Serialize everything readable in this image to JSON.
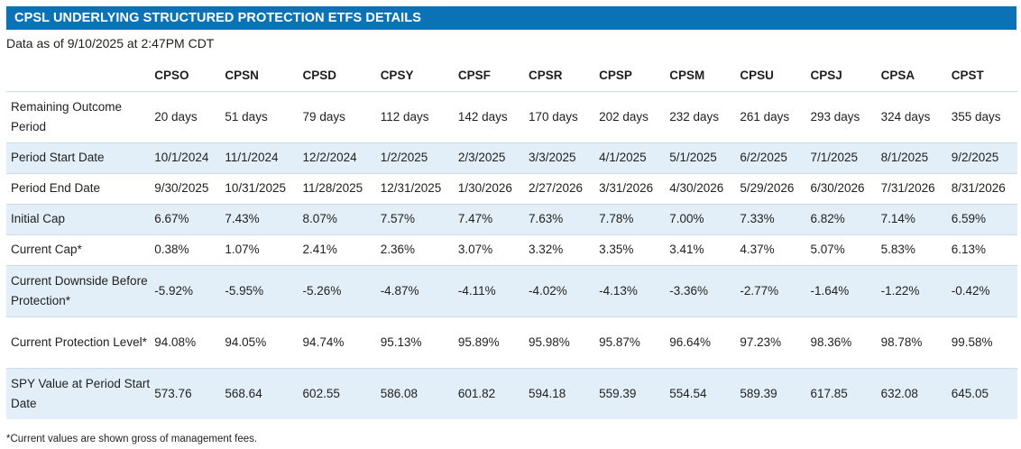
{
  "header": {
    "title": "CPSL UNDERLYING STRUCTURED PROTECTION ETFS DETAILS"
  },
  "as_of": "Data as of 9/10/2025 at 2:47PM CDT",
  "table": {
    "columns": [
      "CPSO",
      "CPSN",
      "CPSD",
      "CPSY",
      "CPSF",
      "CPSR",
      "CPSP",
      "CPSM",
      "CPSU",
      "CPSJ",
      "CPSA",
      "CPST"
    ],
    "rows": [
      {
        "label": "Remaining Outcome Period",
        "shaded": false,
        "tall": true,
        "values": [
          "20 days",
          "51 days",
          "79 days",
          "112 days",
          "142 days",
          "170 days",
          "202 days",
          "232 days",
          "261 days",
          "293 days",
          "324 days",
          "355 days"
        ]
      },
      {
        "label": "Period Start Date",
        "shaded": true,
        "tall": false,
        "values": [
          "10/1/2024",
          "11/1/2024",
          "12/2/2024",
          "1/2/2025",
          "2/3/2025",
          "3/3/2025",
          "4/1/2025",
          "5/1/2025",
          "6/2/2025",
          "7/1/2025",
          "8/1/2025",
          "9/2/2025"
        ]
      },
      {
        "label": "Period End Date",
        "shaded": false,
        "tall": false,
        "values": [
          "9/30/2025",
          "10/31/2025",
          "11/28/2025",
          "12/31/2025",
          "1/30/2026",
          "2/27/2026",
          "3/31/2026",
          "4/30/2026",
          "5/29/2026",
          "6/30/2026",
          "7/31/2026",
          "8/31/2026"
        ]
      },
      {
        "label": "Initial Cap",
        "shaded": true,
        "tall": false,
        "values": [
          "6.67%",
          "7.43%",
          "8.07%",
          "7.57%",
          "7.47%",
          "7.63%",
          "7.78%",
          "7.00%",
          "7.33%",
          "6.82%",
          "7.14%",
          "6.59%"
        ]
      },
      {
        "label": "Current Cap*",
        "shaded": false,
        "tall": false,
        "values": [
          "0.38%",
          "1.07%",
          "2.41%",
          "2.36%",
          "3.07%",
          "3.32%",
          "3.35%",
          "3.41%",
          "4.37%",
          "5.07%",
          "5.83%",
          "6.13%"
        ]
      },
      {
        "label": "Current Downside Before Protection*",
        "shaded": true,
        "tall": true,
        "values": [
          "-5.92%",
          "-5.95%",
          "-5.26%",
          "-4.87%",
          "-4.11%",
          "-4.02%",
          "-4.13%",
          "-3.36%",
          "-2.77%",
          "-1.64%",
          "-1.22%",
          "-0.42%"
        ]
      },
      {
        "label": "Current Protection Level*",
        "shaded": false,
        "tall": true,
        "values": [
          "94.08%",
          "94.05%",
          "94.74%",
          "95.13%",
          "95.89%",
          "95.98%",
          "95.87%",
          "96.64%",
          "97.23%",
          "98.36%",
          "98.78%",
          "99.58%"
        ]
      },
      {
        "label": "SPY Value at Period Start Date",
        "shaded": true,
        "tall": true,
        "values": [
          "573.76",
          "568.64",
          "602.55",
          "586.08",
          "601.82",
          "594.18",
          "559.39",
          "554.54",
          "589.39",
          "617.85",
          "632.08",
          "645.05"
        ]
      }
    ]
  },
  "footnote": "*Current values are shown gross of management fees.",
  "colors": {
    "header_bg": "#0a73b7",
    "row_shade": "#e3eff8",
    "header_text": "#ffffff"
  }
}
